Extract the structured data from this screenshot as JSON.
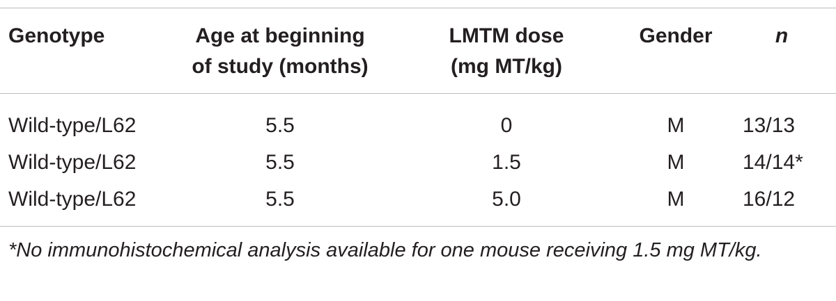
{
  "table": {
    "headers": {
      "genotype": [
        "Genotype"
      ],
      "age": [
        "Age at beginning",
        "of study (months)"
      ],
      "dose": [
        "LMTM dose",
        "(mg MT/kg)"
      ],
      "gender": [
        "Gender"
      ],
      "n": [
        "n"
      ]
    },
    "rows": [
      {
        "genotype": "Wild-type/L62",
        "age": "5.5",
        "dose": "0",
        "gender": "M",
        "n": "13/13"
      },
      {
        "genotype": "Wild-type/L62",
        "age": "5.5",
        "dose": "1.5",
        "gender": "M",
        "n": "14/14*"
      },
      {
        "genotype": "Wild-type/L62",
        "age": "5.5",
        "dose": "5.0",
        "gender": "M",
        "n": "16/12"
      }
    ],
    "footnote": "*No immunohistochemical analysis available for one mouse receiving 1.5 mg MT/kg."
  }
}
